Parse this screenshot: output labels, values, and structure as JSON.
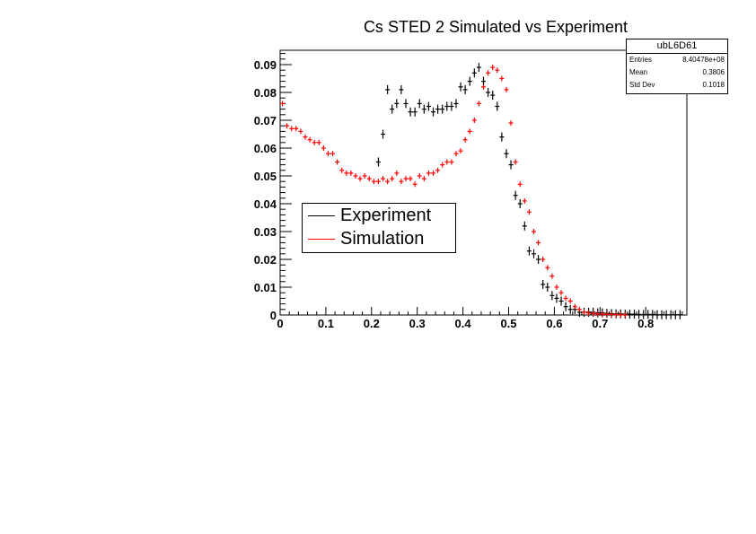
{
  "chart_data": {
    "type": "scatter",
    "title": "Cs STED 2 Simulated vs Experiment",
    "xlabel": "",
    "ylabel": "",
    "xlim": [
      0,
      0.89
    ],
    "ylim": [
      0,
      0.095
    ],
    "grid": false,
    "legend_position": "left-middle",
    "x_ticks": [
      "0",
      "0.1",
      "0.2",
      "0.3",
      "0.4",
      "0.5",
      "0.6",
      "0.7",
      "0.8"
    ],
    "y_ticks": [
      "0",
      "0.01",
      "0.02",
      "0.03",
      "0.04",
      "0.05",
      "0.06",
      "0.07",
      "0.08",
      "0.09"
    ],
    "series": [
      {
        "name": "Experiment",
        "color": "#000000",
        "x": [
          0.215,
          0.225,
          0.235,
          0.245,
          0.255,
          0.265,
          0.275,
          0.285,
          0.295,
          0.305,
          0.315,
          0.325,
          0.335,
          0.345,
          0.355,
          0.365,
          0.375,
          0.385,
          0.395,
          0.405,
          0.415,
          0.425,
          0.435,
          0.445,
          0.455,
          0.465,
          0.475,
          0.485,
          0.495,
          0.505,
          0.515,
          0.525,
          0.535,
          0.545,
          0.555,
          0.565,
          0.575,
          0.585,
          0.595,
          0.605,
          0.615,
          0.625,
          0.635,
          0.645,
          0.655,
          0.665,
          0.675,
          0.685,
          0.695,
          0.705,
          0.715,
          0.725,
          0.735,
          0.745,
          0.755,
          0.765,
          0.775,
          0.785,
          0.795,
          0.805,
          0.815,
          0.825,
          0.835,
          0.845,
          0.855,
          0.865,
          0.875
        ],
        "values": [
          0.055,
          0.065,
          0.081,
          0.074,
          0.076,
          0.081,
          0.076,
          0.073,
          0.073,
          0.076,
          0.074,
          0.075,
          0.073,
          0.074,
          0.074,
          0.075,
          0.075,
          0.076,
          0.082,
          0.081,
          0.084,
          0.087,
          0.089,
          0.084,
          0.08,
          0.079,
          0.075,
          0.064,
          0.058,
          0.054,
          0.043,
          0.04,
          0.032,
          0.023,
          0.022,
          0.02,
          0.011,
          0.01,
          0.007,
          0.006,
          0.005,
          0.003,
          0.002,
          0.002,
          0.001,
          0.001,
          0.001,
          0.001,
          0.0008,
          0.0008,
          0.0006,
          0.0005,
          0.0004,
          0.0004,
          0.0003,
          0.0003,
          0.0003,
          0.0002,
          0.0002,
          0.0002,
          0.0002,
          0.0001,
          0.0001,
          0.0001,
          0.0001,
          0.0001,
          0.0001
        ]
      },
      {
        "name": "Simulation",
        "color": "#ff0000",
        "x": [
          0.005,
          0.015,
          0.025,
          0.035,
          0.045,
          0.055,
          0.065,
          0.075,
          0.085,
          0.095,
          0.105,
          0.115,
          0.125,
          0.135,
          0.145,
          0.155,
          0.165,
          0.175,
          0.185,
          0.195,
          0.205,
          0.215,
          0.225,
          0.235,
          0.245,
          0.255,
          0.265,
          0.275,
          0.285,
          0.295,
          0.305,
          0.315,
          0.325,
          0.335,
          0.345,
          0.355,
          0.365,
          0.375,
          0.385,
          0.395,
          0.405,
          0.415,
          0.425,
          0.435,
          0.445,
          0.455,
          0.465,
          0.475,
          0.485,
          0.495,
          0.505,
          0.515,
          0.525,
          0.535,
          0.545,
          0.555,
          0.565,
          0.575,
          0.585,
          0.595,
          0.605,
          0.615,
          0.625,
          0.635,
          0.645,
          0.655,
          0.665,
          0.675,
          0.685,
          0.695,
          0.705,
          0.715,
          0.725,
          0.735,
          0.745,
          0.755
        ],
        "values": [
          0.076,
          0.068,
          0.067,
          0.067,
          0.066,
          0.064,
          0.063,
          0.062,
          0.062,
          0.06,
          0.058,
          0.058,
          0.055,
          0.052,
          0.051,
          0.051,
          0.05,
          0.049,
          0.05,
          0.049,
          0.048,
          0.048,
          0.049,
          0.048,
          0.049,
          0.051,
          0.048,
          0.049,
          0.049,
          0.047,
          0.05,
          0.049,
          0.051,
          0.051,
          0.052,
          0.054,
          0.055,
          0.055,
          0.058,
          0.059,
          0.063,
          0.066,
          0.07,
          0.076,
          0.082,
          0.087,
          0.089,
          0.088,
          0.085,
          0.081,
          0.069,
          0.055,
          0.047,
          0.041,
          0.037,
          0.03,
          0.026,
          0.02,
          0.017,
          0.014,
          0.01,
          0.008,
          0.006,
          0.005,
          0.003,
          0.002,
          0.001,
          0.0007,
          0.0005,
          0.0004,
          0.0003,
          0.0002,
          0.0002,
          0.0001,
          0.0001,
          0.0001
        ]
      }
    ]
  },
  "stats_box": {
    "name": "ubL6D61",
    "rows": [
      {
        "label": "Entries",
        "value": "8.40478e+08"
      },
      {
        "label": "Mean",
        "value": "0.3806"
      },
      {
        "label": "Std Dev",
        "value": "0.1018"
      }
    ]
  },
  "legend": {
    "items": [
      {
        "label": "Experiment",
        "color": "#000000"
      },
      {
        "label": "Simulation",
        "color": "#ff0000"
      }
    ]
  }
}
